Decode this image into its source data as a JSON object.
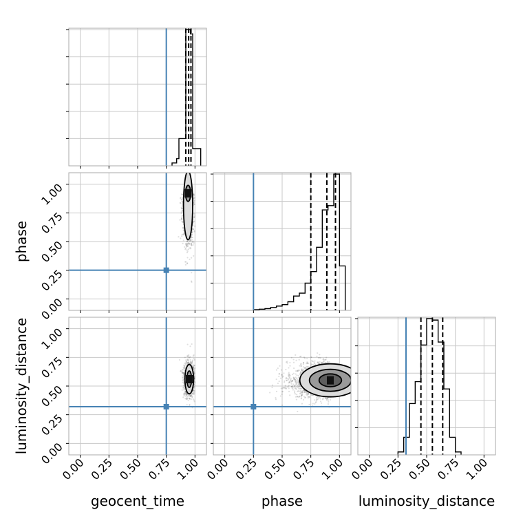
{
  "chart_data": {
    "type": "corner",
    "parameters": [
      "geocent_time",
      "phase",
      "luminosity_distance"
    ],
    "truths": [
      0.75,
      0.25,
      0.32
    ],
    "axis_range": [
      -0.1,
      1.1
    ],
    "tick_labels": [
      "0.00",
      "0.25",
      "0.50",
      "0.75",
      "1.00"
    ],
    "grid": true,
    "colors": {
      "truth": "#4682b4",
      "histogram": "#000000",
      "samples": "#000000"
    },
    "histograms": [
      {
        "parameter": "geocent_time",
        "bin_edges": [
          0.8,
          0.84,
          0.86,
          0.9,
          0.92,
          0.94,
          0.96,
          0.98,
          1.05
        ],
        "counts": [
          0.02,
          0.05,
          0.19,
          0.19,
          0.95,
          0.95,
          0.92,
          0.12
        ],
        "quantiles": [
          0.92,
          0.945,
          0.965
        ]
      },
      {
        "parameter": "phase",
        "bin_edges": [
          0.25,
          0.3,
          0.35,
          0.4,
          0.45,
          0.5,
          0.55,
          0.6,
          0.65,
          0.7,
          0.75,
          0.8,
          0.85,
          0.9,
          0.95,
          1.0,
          1.05
        ],
        "counts": [
          0.005,
          0.008,
          0.012,
          0.02,
          0.03,
          0.04,
          0.06,
          0.1,
          0.12,
          0.19,
          0.27,
          0.44,
          0.7,
          0.73,
          0.95,
          0.31
        ],
        "quantiles": [
          0.75,
          0.89,
          0.965
        ]
      },
      {
        "parameter": "luminosity_distance",
        "bin_edges": [
          0.25,
          0.3,
          0.35,
          0.4,
          0.45,
          0.5,
          0.55,
          0.6,
          0.65,
          0.7,
          0.75,
          0.8
        ],
        "counts": [
          0.02,
          0.12,
          0.35,
          0.5,
          0.75,
          0.93,
          0.92,
          0.77,
          0.45,
          0.12,
          0.02
        ],
        "quantiles": [
          0.45,
          0.55,
          0.64
        ]
      }
    ],
    "scatter_2d": [
      {
        "x": "geocent_time",
        "y": "phase",
        "center": [
          0.94,
          0.92
        ],
        "spread": [
          0.025,
          0.2
        ],
        "contour_levels": 2
      },
      {
        "x": "geocent_time",
        "y": "luminosity_distance",
        "center": [
          0.95,
          0.56
        ],
        "spread": [
          0.025,
          0.08
        ],
        "contour_levels": 2
      },
      {
        "x": "phase",
        "y": "luminosity_distance",
        "center": [
          0.92,
          0.55
        ],
        "spread": [
          0.14,
          0.08
        ],
        "contour_levels": 3
      }
    ]
  }
}
